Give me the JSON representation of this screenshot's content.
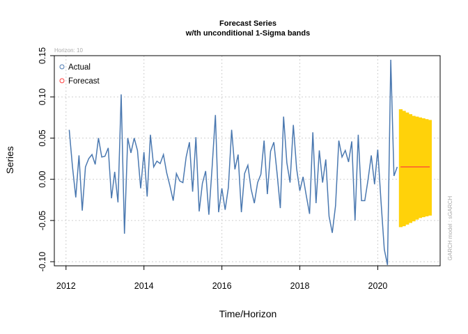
{
  "chart_data": {
    "type": "line",
    "title": "Forecast Series",
    "subtitle": "w/th unconditional 1-Sigma bands",
    "xlabel": "Time/Horizon",
    "ylabel": "Series",
    "horizon_note": "Horizon: 10",
    "side_note": "GARCH model : sGARCH",
    "xlim": [
      2011.7,
      2021.6
    ],
    "ylim": [
      -0.105,
      0.15
    ],
    "x_ticks": [
      2012,
      2014,
      2016,
      2018,
      2020
    ],
    "x_tick_labels": [
      "2012",
      "2014",
      "2016",
      "2018",
      "2020"
    ],
    "y_ticks": [
      -0.1,
      -0.05,
      0.0,
      0.05,
      0.1,
      0.15
    ],
    "y_tick_labels": [
      "-0.10",
      "-0.05",
      "0.00",
      "0.05",
      "0.10",
      "0.15"
    ],
    "grid": true,
    "legend": {
      "position": "top-left",
      "entries": [
        "Actual",
        "Forecast"
      ]
    },
    "colors": {
      "actual": "#4a78b0",
      "forecast": "#ff3b3b",
      "band": "#ffd20a",
      "grid": "#cfcfcf"
    },
    "series": [
      {
        "name": "Actual",
        "x_start": 2012.083,
        "x_step": 0.08333,
        "values": [
          0.06,
          0.015,
          -0.022,
          0.029,
          -0.038,
          0.015,
          0.025,
          0.03,
          0.018,
          0.05,
          0.027,
          0.028,
          0.038,
          -0.023,
          0.009,
          -0.028,
          0.103,
          -0.066,
          0.05,
          0.032,
          0.05,
          0.035,
          -0.011,
          0.033,
          -0.021,
          0.054,
          0.015,
          0.022,
          0.019,
          0.03,
          0.008,
          -0.008,
          -0.026,
          0.007,
          -0.002,
          -0.004,
          0.027,
          0.045,
          -0.015,
          0.051,
          -0.039,
          -0.005,
          0.01,
          -0.043,
          0.015,
          0.078,
          -0.04,
          -0.011,
          -0.037,
          -0.01,
          0.06,
          0.012,
          0.03,
          -0.04,
          0.007,
          0.017,
          -0.012,
          -0.029,
          -0.004,
          0.006,
          0.047,
          -0.018,
          0.034,
          0.045,
          0.007,
          -0.035,
          0.076,
          0.02,
          -0.004,
          0.066,
          0.013,
          -0.014,
          0.003,
          -0.02,
          -0.042,
          0.057,
          -0.029,
          0.035,
          -0.004,
          0.024,
          -0.045,
          -0.065,
          -0.032,
          0.047,
          0.027,
          0.035,
          0.021,
          0.046,
          -0.05,
          0.054,
          -0.026,
          -0.026,
          -0.001,
          0.029,
          -0.006,
          0.036,
          -0.027,
          -0.085,
          -0.104,
          0.145,
          0.004,
          0.015
        ]
      },
      {
        "name": "Forecast",
        "x_start": 2020.583,
        "x_step": 0.08333,
        "values": [
          0.015,
          0.015,
          0.015,
          0.015,
          0.015,
          0.015,
          0.015,
          0.015,
          0.015,
          0.015
        ],
        "upper": [
          0.085,
          0.083,
          0.081,
          0.079,
          0.077,
          0.076,
          0.075,
          0.074,
          0.073,
          0.072
        ],
        "lower": [
          -0.058,
          -0.057,
          -0.055,
          -0.053,
          -0.051,
          -0.049,
          -0.047,
          -0.046,
          -0.045,
          -0.044
        ]
      }
    ]
  }
}
